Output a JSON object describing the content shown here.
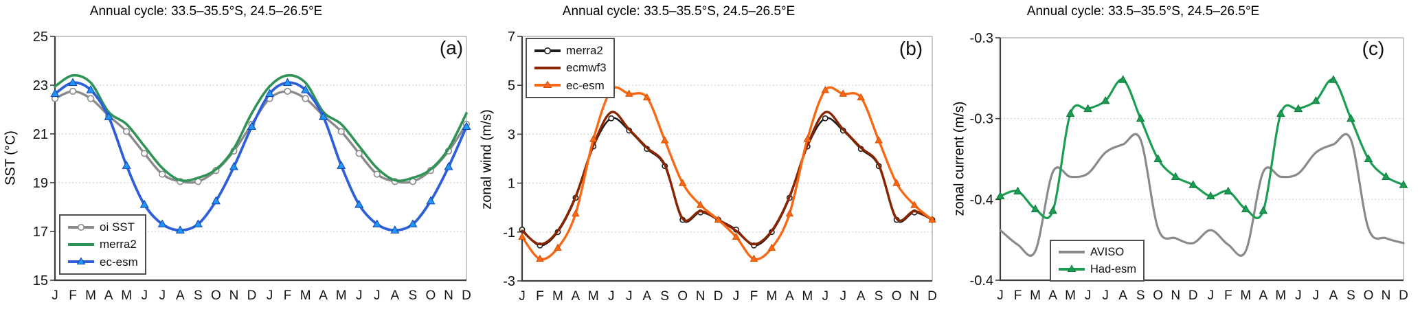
{
  "figure": {
    "description": "Three-panel climatology figure, two repeated annual cycles (Jan-Dec twice) per panel",
    "panels_count": 3
  },
  "chart_data": [
    {
      "type": "line",
      "panel_label": "(a)",
      "title": "Annual cycle: 33.5–35.5°S, 24.5–26.5°E",
      "xlabel": "",
      "ylabel": "SST (°C)",
      "x_categories": [
        "J",
        "F",
        "M",
        "A",
        "M",
        "J",
        "J",
        "A",
        "S",
        "O",
        "N",
        "D",
        "J",
        "F",
        "M",
        "A",
        "M",
        "J",
        "J",
        "A",
        "S",
        "O",
        "N",
        "D"
      ],
      "x_note": "months, annual cycle repeated twice",
      "ylim": [
        15,
        25
      ],
      "yticks": [
        {
          "value": 25,
          "label": "25"
        },
        {
          "value": 23,
          "label": "23"
        },
        {
          "value": 21,
          "label": "21"
        },
        {
          "value": 19,
          "label": "19"
        },
        {
          "value": 17,
          "label": "17"
        },
        {
          "value": 15,
          "label": "15"
        }
      ],
      "grid": true,
      "legend_position": "bottom-left",
      "series": [
        {
          "name": "oi SST",
          "color": "#8a8a8a",
          "marker": "circle-open",
          "marker_fill": "#ffffff",
          "marker_stroke": "#8a8a8a",
          "values_annual": [
            22.45,
            22.75,
            22.45,
            21.75,
            21.1,
            20.2,
            19.35,
            19.05,
            19.05,
            19.5,
            20.3,
            21.4
          ]
        },
        {
          "name": "merra2",
          "color": "#2e9355",
          "marker": "none",
          "values_annual": [
            22.95,
            23.4,
            23.1,
            21.9,
            21.4,
            20.5,
            19.6,
            19.1,
            19.2,
            19.55,
            20.4,
            21.85
          ]
        },
        {
          "name": "ec-esm",
          "color": "#2c5fd8",
          "marker": "triangle",
          "marker_fill": "#2196f3",
          "marker_stroke": "#1243b8",
          "values_annual": [
            22.65,
            23.1,
            22.8,
            21.7,
            19.7,
            18.1,
            17.3,
            17.05,
            17.3,
            18.25,
            19.65,
            21.3
          ]
        }
      ]
    },
    {
      "type": "line",
      "panel_label": "(b)",
      "title": "Annual cycle: 33.5–35.5°S, 24.5–26.5°E",
      "xlabel": "",
      "ylabel": "zonal wind (m/s)",
      "x_categories": [
        "J",
        "F",
        "M",
        "A",
        "M",
        "J",
        "J",
        "A",
        "S",
        "O",
        "N",
        "D",
        "J",
        "F",
        "M",
        "A",
        "M",
        "J",
        "J",
        "A",
        "S",
        "O",
        "N",
        "D"
      ],
      "x_note": "months, annual cycle repeated twice",
      "ylim": [
        -3,
        7
      ],
      "yticks": [
        {
          "value": 7,
          "label": "7"
        },
        {
          "value": 5,
          "label": "5"
        },
        {
          "value": 3,
          "label": "3"
        },
        {
          "value": 1,
          "label": "1"
        },
        {
          "value": -1,
          "label": "-1"
        },
        {
          "value": -3,
          "label": "-3"
        }
      ],
      "grid": true,
      "legend_position": "top-left",
      "series": [
        {
          "name": "merra2",
          "color": "#1c1c1c",
          "marker": "circle-open",
          "marker_fill": "#ffffff",
          "marker_stroke": "#1c1c1c",
          "values_annual": [
            -0.9,
            -1.55,
            -1.0,
            0.4,
            2.5,
            3.65,
            3.15,
            2.4,
            1.7,
            -0.5,
            -0.2,
            -0.5
          ]
        },
        {
          "name": "ecmwf3",
          "color": "#8b2500",
          "marker": "none",
          "values_annual": [
            -0.95,
            -1.5,
            -0.95,
            0.45,
            2.55,
            3.9,
            3.2,
            2.45,
            1.75,
            -0.45,
            -0.15,
            -0.5
          ]
        },
        {
          "name": "ec-esm",
          "color": "#f96814",
          "marker": "triangle",
          "marker_fill": "#f96814",
          "marker_stroke": "#d54e00",
          "values_annual": [
            -1.2,
            -2.1,
            -1.65,
            -0.25,
            2.8,
            4.8,
            4.65,
            4.5,
            2.75,
            1.0,
            0.1,
            -0.5
          ]
        }
      ]
    },
    {
      "type": "line",
      "panel_label": "(c)",
      "title": "Annual cycle: 33.5–35.5°S, 24.5–26.5°E",
      "xlabel": "",
      "ylabel": "zonal current (m/s)",
      "x_categories": [
        "J",
        "F",
        "M",
        "A",
        "M",
        "J",
        "J",
        "A",
        "S",
        "O",
        "N",
        "D",
        "J",
        "F",
        "M",
        "A",
        "M",
        "J",
        "J",
        "A",
        "S",
        "O",
        "N",
        "D"
      ],
      "x_note": "months, annual cycle repeated twice",
      "ylim": [
        -0.4,
        -0.25
      ],
      "ytick_note": "tick labels shown rounded to one decimal as in source",
      "yticks": [
        {
          "value": -0.25,
          "label": "-0.3"
        },
        {
          "value": -0.3,
          "label": "-0.3"
        },
        {
          "value": -0.35,
          "label": "-0.4"
        },
        {
          "value": -0.4,
          "label": "-0.4"
        }
      ],
      "grid": true,
      "legend_position": "bottom-left",
      "series": [
        {
          "name": "AVISO",
          "color": "#8a8a8a",
          "marker": "none",
          "values_annual": [
            -0.369,
            -0.378,
            -0.382,
            -0.333,
            -0.336,
            -0.334,
            -0.321,
            -0.316,
            -0.313,
            -0.368,
            -0.374,
            -0.377
          ]
        },
        {
          "name": "Had-esm",
          "color": "#1b9e53",
          "marker": "triangle",
          "marker_fill": "#1b9e53",
          "marker_stroke": "#0e7a3c",
          "values_annual": [
            -0.348,
            -0.345,
            -0.356,
            -0.357,
            -0.297,
            -0.294,
            -0.289,
            -0.276,
            -0.3,
            -0.325,
            -0.336,
            -0.341
          ]
        }
      ]
    }
  ]
}
